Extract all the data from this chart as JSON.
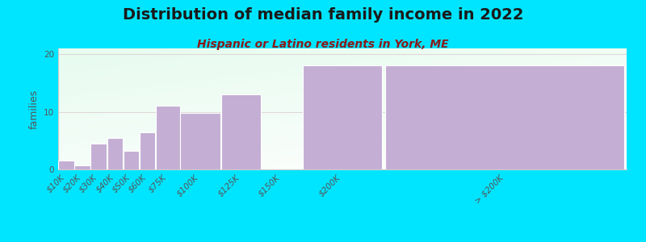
{
  "title": "Distribution of median family income in 2022",
  "subtitle": "Hispanic or Latino residents in York, ME",
  "ylabel": "families",
  "categories": [
    "$10K",
    "$20K",
    "$30K",
    "$40K",
    "$50K",
    "$60K",
    "$75K",
    "$100K",
    "$125K",
    "$150K",
    "$200K",
    "> $200K"
  ],
  "values": [
    1.5,
    0.7,
    4.5,
    5.5,
    3.2,
    6.5,
    11.0,
    9.8,
    13.0,
    0.0,
    18.0,
    18.0
  ],
  "bin_lefts": [
    0,
    10,
    20,
    30,
    40,
    50,
    60,
    75,
    100,
    125,
    150,
    200,
    300
  ],
  "bar_color": "#c4aed4",
  "background_outer": "#00e5ff",
  "title_color": "#1a1a1a",
  "subtitle_color": "#8b1a1a",
  "ylabel_color": "#555555",
  "ytick_color": "#555555",
  "xtick_color": "#555555",
  "grid_color": "#e0d8d8",
  "ylim": [
    0,
    21
  ],
  "yticks": [
    0,
    10,
    20
  ],
  "title_fontsize": 14,
  "subtitle_fontsize": 10,
  "ylabel_fontsize": 9,
  "tick_fontsize": 7.5
}
